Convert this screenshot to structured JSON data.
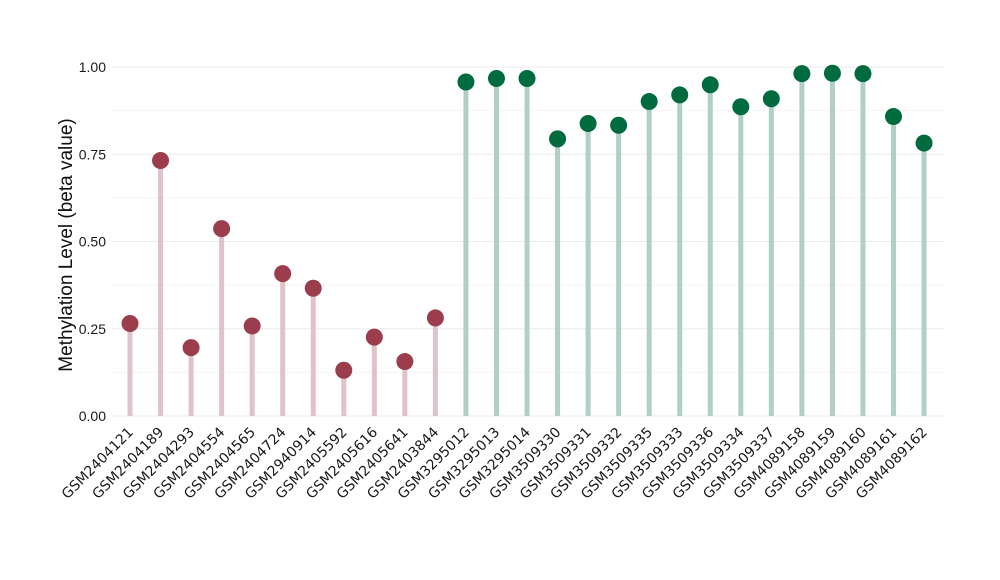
{
  "chart_data": {
    "type": "lollipop",
    "title": "",
    "xlabel": "",
    "ylabel": "Methylation Level (beta value)",
    "ylim": [
      0,
      1.0
    ],
    "yticks": [
      "0.00",
      "0.25",
      "0.50",
      "0.75",
      "1.00"
    ],
    "grid": true,
    "categories": [
      "GSM2404121",
      "GSM2404189",
      "GSM2404293",
      "GSM2404554",
      "GSM2404565",
      "GSM2404724",
      "GSM2940914",
      "GSM2405592",
      "GSM2405616",
      "GSM2405641",
      "GSM2403844",
      "GSM3295012",
      "GSM3295013",
      "GSM3295014",
      "GSM3509330",
      "GSM3509331",
      "GSM3509332",
      "GSM3509335",
      "GSM3509333",
      "GSM3509336",
      "GSM3509334",
      "GSM3509337",
      "GSM4089158",
      "GSM4089159",
      "GSM4089160",
      "GSM4089161",
      "GSM4089162"
    ],
    "values": [
      0.265,
      0.732,
      0.196,
      0.537,
      0.258,
      0.408,
      0.366,
      0.131,
      0.226,
      0.156,
      0.281,
      0.957,
      0.967,
      0.967,
      0.794,
      0.838,
      0.833,
      0.901,
      0.92,
      0.949,
      0.886,
      0.909,
      0.981,
      0.982,
      0.981,
      0.858,
      0.782
    ],
    "groups": [
      "low",
      "low",
      "low",
      "low",
      "low",
      "low",
      "low",
      "low",
      "low",
      "low",
      "low",
      "high",
      "high",
      "high",
      "high",
      "high",
      "high",
      "high",
      "high",
      "high",
      "high",
      "high",
      "high",
      "high",
      "high",
      "high",
      "high"
    ],
    "colors": {
      "low_point": "#9b3d4d",
      "low_stem": "#e0c3c9",
      "high_point": "#006b3f",
      "high_stem": "#b1cfc4"
    }
  }
}
